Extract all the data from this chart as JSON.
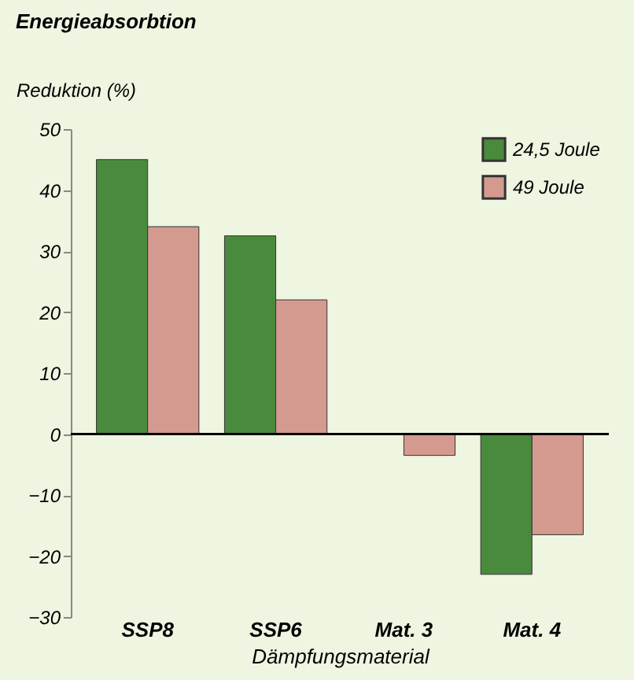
{
  "chart_data": {
    "type": "bar",
    "title": "Energieabsorbtion",
    "ylabel": "Reduktion (%)",
    "xlabel": "Dämpfungsmaterial",
    "categories": [
      "SSP8",
      "SSP6",
      "Mat. 3",
      "Mat. 4"
    ],
    "series": [
      {
        "name": "24,5 Joule",
        "color": "#4a8a3c",
        "values": [
          45,
          32.5,
          null,
          -23
        ]
      },
      {
        "name": "49 Joule",
        "color": "#d49a90",
        "values": [
          34,
          22,
          -3.5,
          -16.5
        ]
      }
    ],
    "ylim": [
      -30,
      50
    ],
    "yticks": [
      -30,
      -20,
      -10,
      0,
      10,
      20,
      30,
      40,
      50
    ],
    "ref_lines": [
      {
        "axis": "y",
        "value": 0,
        "color": "#000000"
      }
    ],
    "grid": false,
    "legend": "top right"
  }
}
